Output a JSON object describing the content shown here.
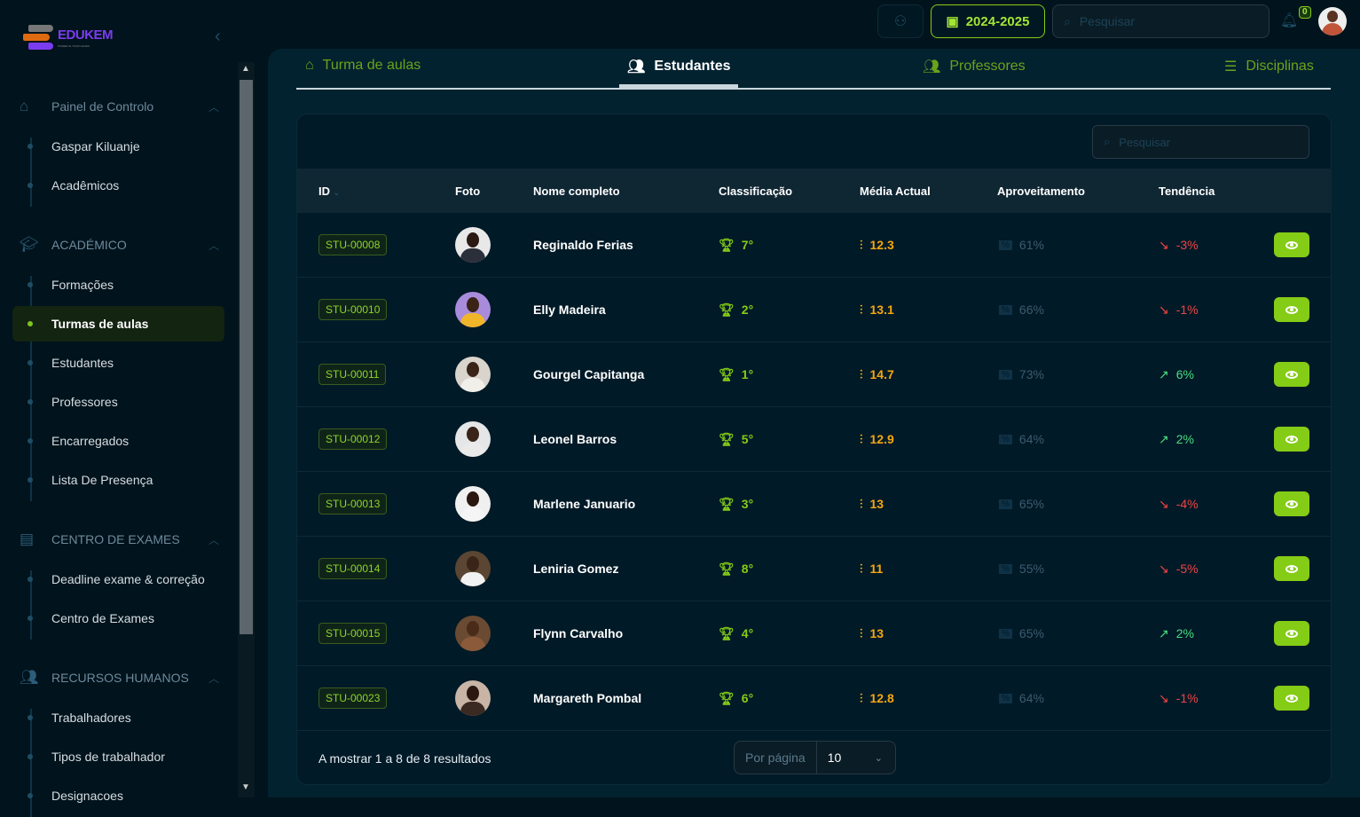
{
  "brand": {
    "name": "EDUKEM",
    "tagline": "POWER IN YOUR HANDS"
  },
  "topbar": {
    "year": "2024-2025",
    "search_placeholder": "Pesquisar",
    "notifications": "0"
  },
  "sidebar": {
    "groups": [
      {
        "label": "Painel de Controlo",
        "icon": "home-icon",
        "items": [
          "Gaspar Kiluanje",
          "Acadêmicos"
        ]
      },
      {
        "label": "ACADÉMICO",
        "icon": "graduation-cap-icon",
        "items": [
          "Formações",
          "Turmas de aulas",
          "Estudantes",
          "Professores",
          "Encarregados",
          "Lista De Presença"
        ]
      },
      {
        "label": "CENTRO DE EXAMES",
        "icon": "box-icon",
        "items": [
          "Deadline exame & correção",
          "Centro de Exames"
        ]
      },
      {
        "label": "RECURSOS HUMANOS",
        "icon": "users-icon",
        "items": [
          "Trabalhadores",
          "Tipos de trabalhador",
          "Designacoes"
        ]
      }
    ],
    "active_item": "Turmas de aulas"
  },
  "tabs": [
    {
      "label": "Turma de aulas",
      "icon": "home-icon"
    },
    {
      "label": "Estudantes",
      "icon": "users-icon",
      "active": true
    },
    {
      "label": "Professores",
      "icon": "users-icon"
    },
    {
      "label": "Disciplinas",
      "icon": "database-icon"
    }
  ],
  "table": {
    "search_placeholder": "Pesquisar",
    "headers": [
      "ID",
      "Foto",
      "Nome completo",
      "Classificação",
      "Média Actual",
      "Aproveitamento",
      "Tendência"
    ],
    "rows": [
      {
        "id": "STU-00008",
        "name": "Reginaldo Ferias",
        "rank": "7°",
        "avg": "12.3",
        "apr": "61%",
        "trend": "-3%",
        "dir": "down"
      },
      {
        "id": "STU-00010",
        "name": "Elly Madeira",
        "rank": "2°",
        "avg": "13.1",
        "apr": "66%",
        "trend": "-1%",
        "dir": "down"
      },
      {
        "id": "STU-00011",
        "name": "Gourgel Capitanga",
        "rank": "1°",
        "avg": "14.7",
        "apr": "73%",
        "trend": "6%",
        "dir": "up"
      },
      {
        "id": "STU-00012",
        "name": "Leonel Barros",
        "rank": "5°",
        "avg": "12.9",
        "apr": "64%",
        "trend": "2%",
        "dir": "up"
      },
      {
        "id": "STU-00013",
        "name": "Marlene Januario",
        "rank": "3°",
        "avg": "13",
        "apr": "65%",
        "trend": "-4%",
        "dir": "down"
      },
      {
        "id": "STU-00014",
        "name": "Leniria Gomez",
        "rank": "8°",
        "avg": "11",
        "apr": "55%",
        "trend": "-5%",
        "dir": "down"
      },
      {
        "id": "STU-00015",
        "name": "Flynn Carvalho",
        "rank": "4°",
        "avg": "13",
        "apr": "65%",
        "trend": "2%",
        "dir": "up"
      },
      {
        "id": "STU-00023",
        "name": "Margareth Pombal",
        "rank": "6°",
        "avg": "12.8",
        "apr": "64%",
        "trend": "-1%",
        "dir": "down"
      }
    ],
    "footer": "A mostrar 1 a 8 de 8 resultados",
    "per_page_label": "Por página",
    "per_page": "10"
  },
  "colors": {
    "accent": "#84cc16",
    "average": "#f5a70f",
    "down": "#ef4444",
    "up": "#4ade80"
  }
}
